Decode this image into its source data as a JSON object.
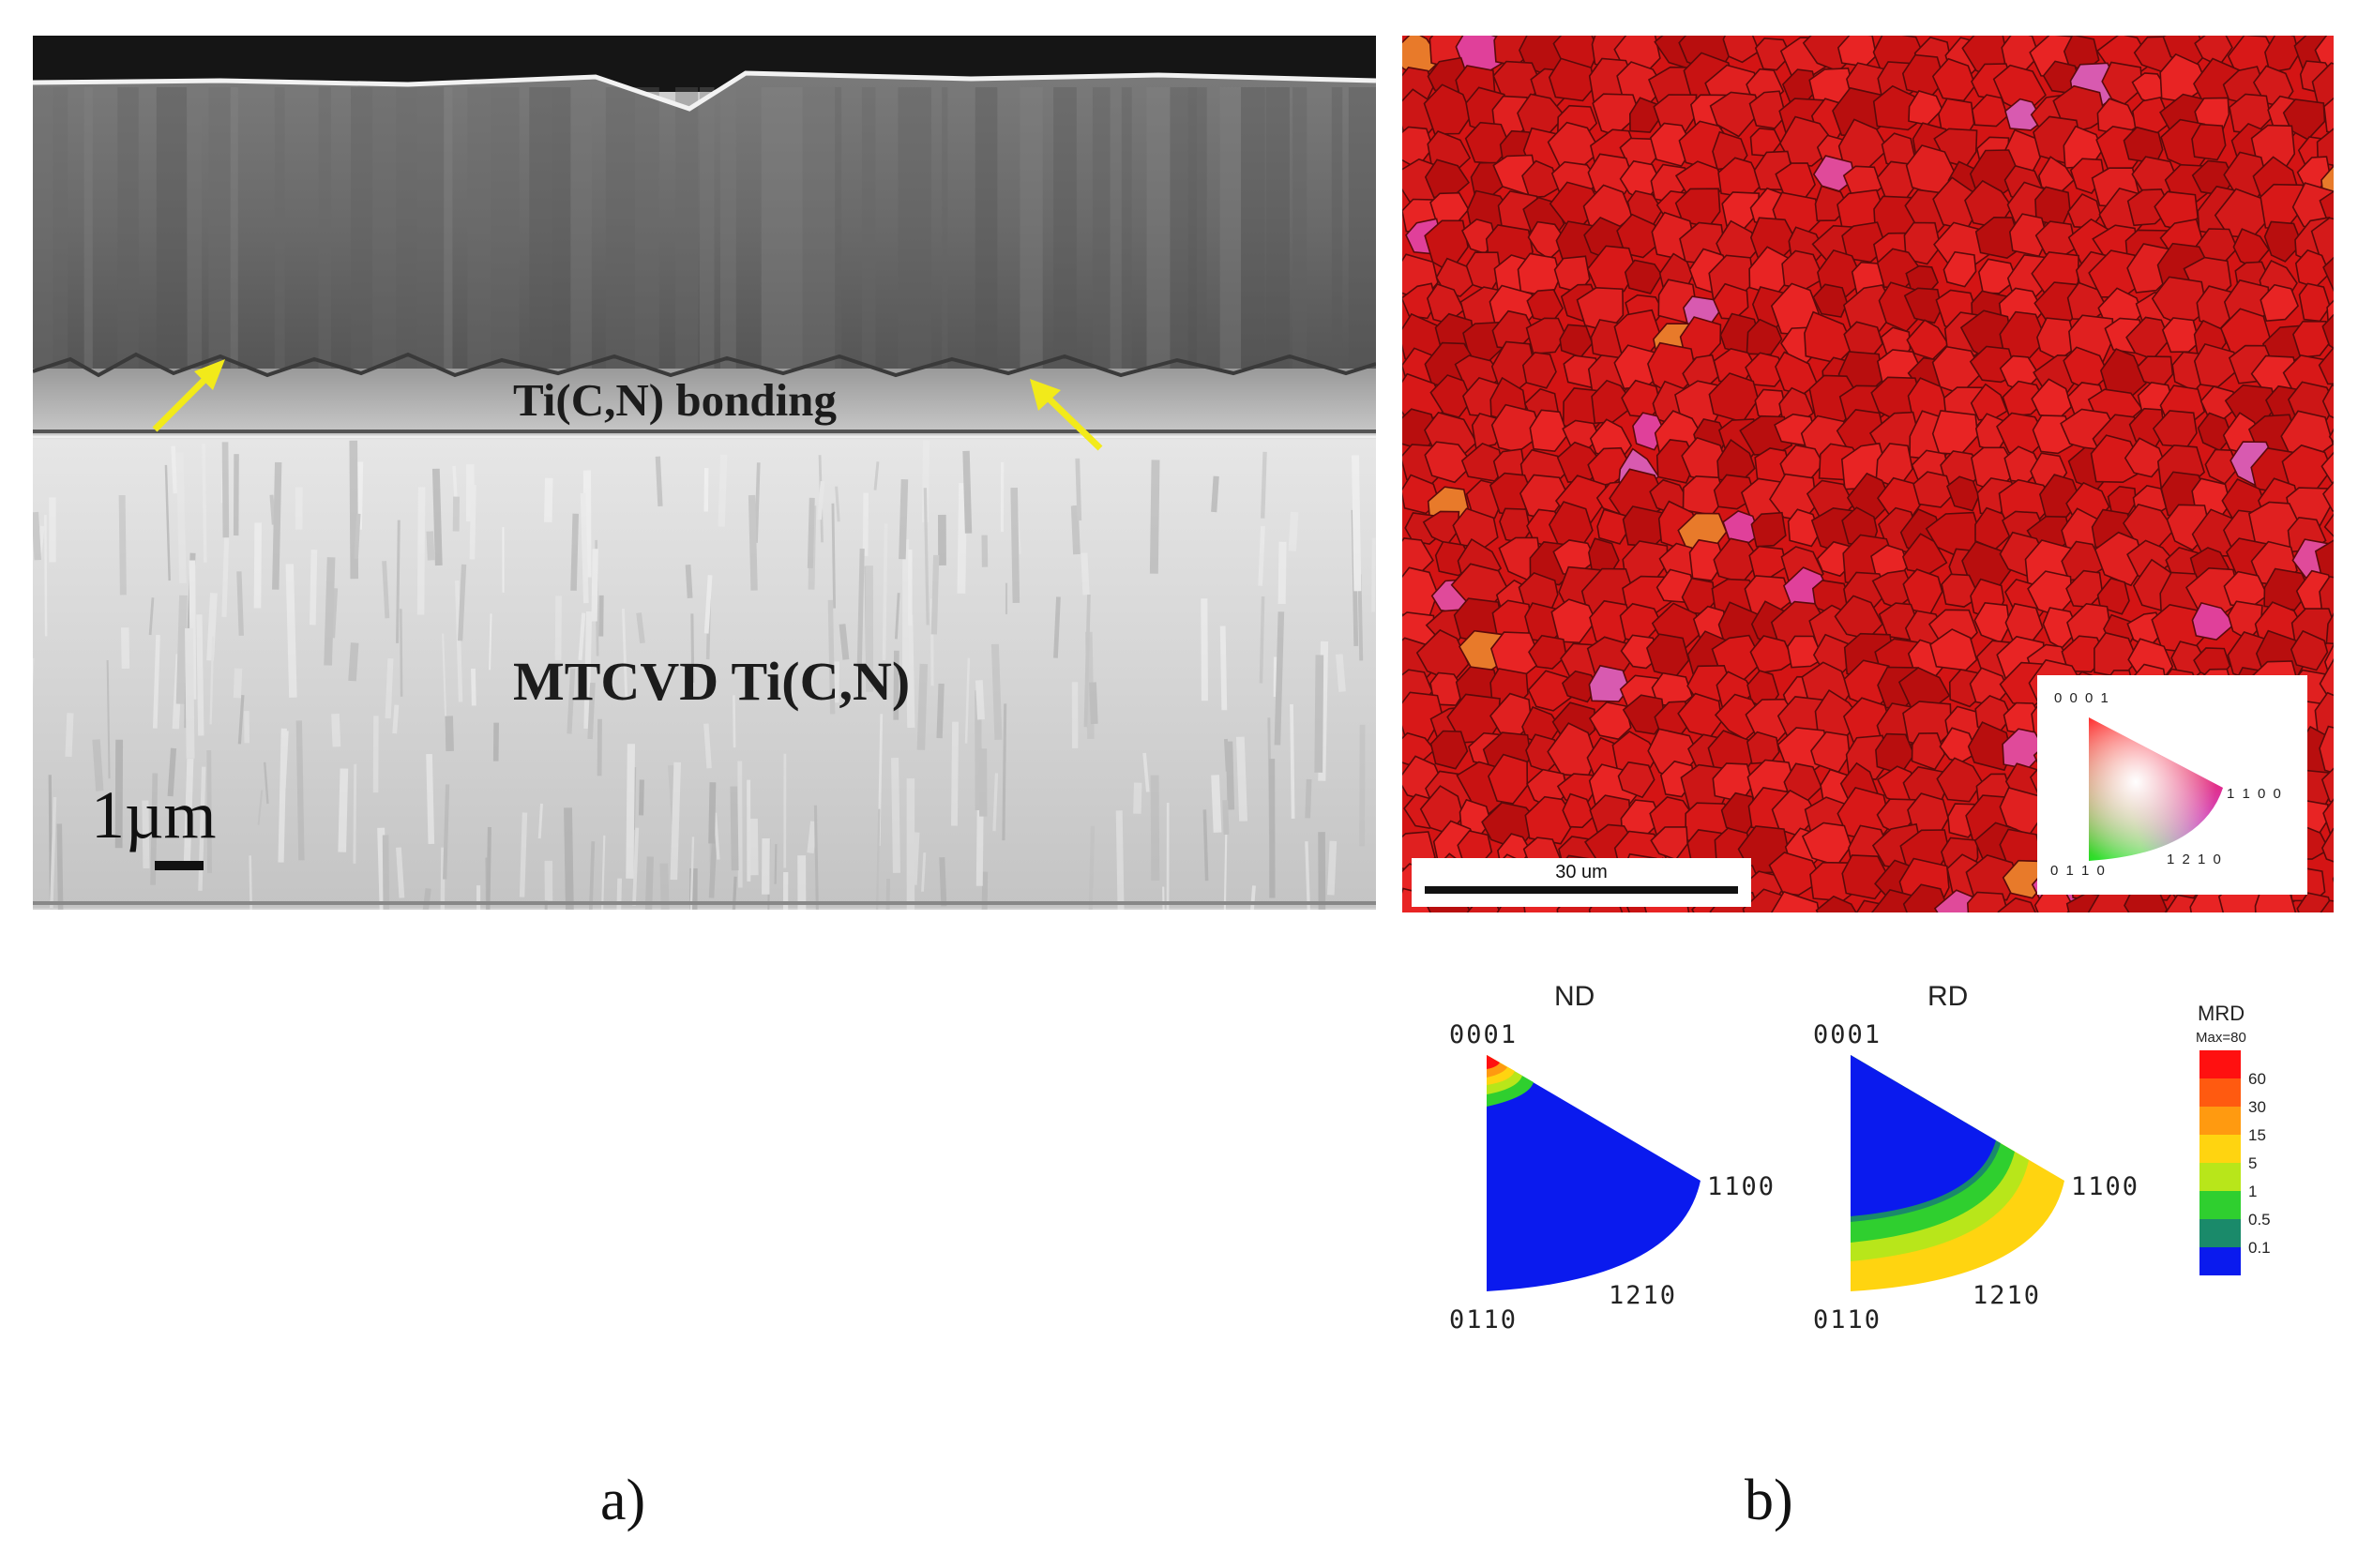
{
  "panel_a": {
    "bonding_label": "Ti(C,N) bonding",
    "layer_label": "MTCVD Ti(C,N)",
    "scale_bar": "1µm",
    "arrow_color": "#f2ea1a",
    "caption": "a)"
  },
  "panel_b": {
    "scale_bar": "30 um",
    "ipf_key": {
      "top": "0 0 0 1",
      "right": "1 1 0 0",
      "bottom_left": "0 1 1 0",
      "bottom_mid": "1 2 1 0"
    },
    "pole_figures": [
      {
        "title": "ND",
        "top": "0001",
        "right": "1100",
        "bottom_left": "0110",
        "bottom_mid": "1210"
      },
      {
        "title": "RD",
        "top": "0001",
        "right": "1100",
        "bottom_left": "0110",
        "bottom_mid": "1210"
      }
    ],
    "legend": {
      "title": "MRD",
      "max": "Max=80",
      "levels": [
        "60",
        "30",
        "15",
        "5",
        "1",
        "0.5",
        "0.1"
      ],
      "colors": [
        "#ff1010",
        "#ff5a10",
        "#ff9a10",
        "#ffd410",
        "#b8e61a",
        "#2fcf2f",
        "#1a8a6a",
        "#0a1aee"
      ]
    },
    "caption": "b)"
  }
}
